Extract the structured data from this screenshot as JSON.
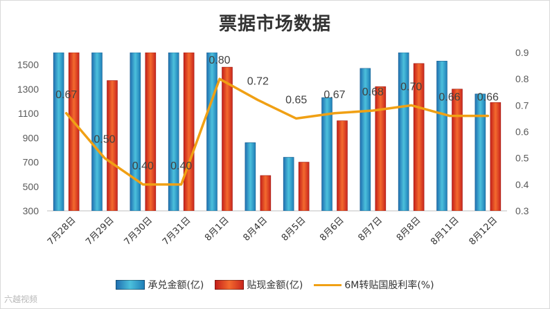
{
  "chart_data": {
    "type": "bar+line",
    "title": "票据市场数据",
    "categories": [
      "7月28日",
      "7月29日",
      "7月30日",
      "7月31日",
      "8月1日",
      "8月4日",
      "8月5日",
      "8月6日",
      "8月7日",
      "8月8日",
      "8月11日",
      "8月12日"
    ],
    "y_left": {
      "ticks": [
        300,
        500,
        700,
        900,
        1100,
        1300,
        1500
      ],
      "ylim": [
        300,
        1600
      ]
    },
    "y_right": {
      "ticks": [
        "0.3",
        "0.4",
        "0.5",
        "0.6",
        "0.7",
        "0.8",
        "0.9"
      ],
      "ylim": [
        0.3,
        0.9
      ]
    },
    "series": [
      {
        "name": "承兑金额(亿)",
        "type": "bar",
        "axis": "left",
        "color": "#2e9fc4",
        "values": [
          1600,
          1600,
          1600,
          1600,
          1600,
          860,
          740,
          1230,
          1470,
          1600,
          1530,
          1260
        ]
      },
      {
        "name": "贴现金额(亿)",
        "type": "bar",
        "axis": "left",
        "color": "#e0342f",
        "values": [
          1600,
          1370,
          1600,
          1600,
          1480,
          590,
          700,
          1040,
          1320,
          1510,
          1300,
          1190
        ]
      },
      {
        "name": "6M转贴国股利率(%)",
        "type": "line",
        "axis": "right",
        "color": "#f0a014",
        "values": [
          0.67,
          0.5,
          0.4,
          0.4,
          0.8,
          0.72,
          0.65,
          0.67,
          0.68,
          0.7,
          0.66,
          0.66
        ],
        "labels": [
          "0.67",
          "0.50",
          "0.40",
          "0.40",
          "0.80",
          "0.72",
          "0.65",
          "0.67",
          "0.68",
          "0.70",
          "0.66",
          "0.66"
        ]
      }
    ]
  },
  "watermark": "六越视频"
}
